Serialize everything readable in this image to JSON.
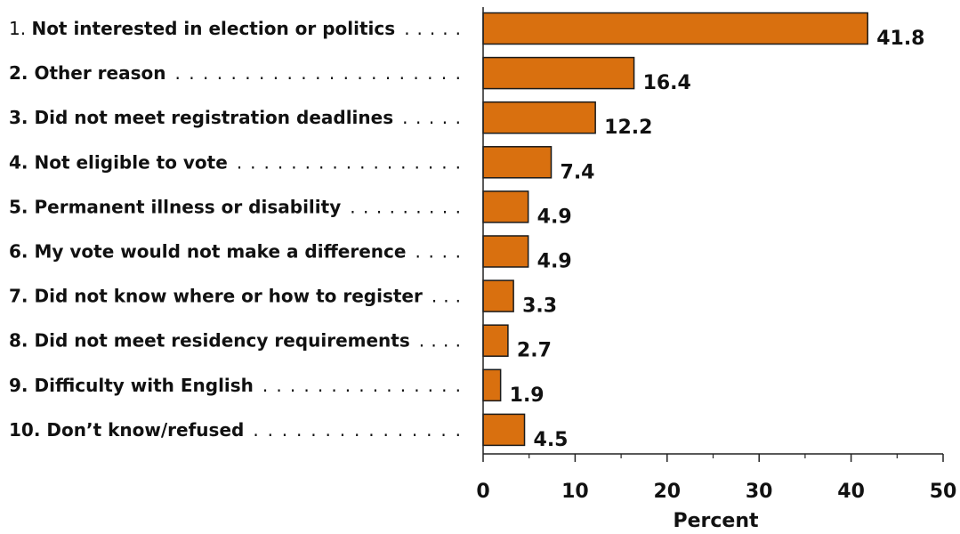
{
  "chart_data": {
    "type": "bar",
    "orientation": "horizontal",
    "categories": [
      "Not interested in election or politics",
      "Other reason",
      "Did not meet registration deadlines",
      "Not eligible to vote",
      "Permanent illness or disability",
      "My vote would not make a difference",
      "Did not know where or how to register",
      "Did not meet residency requirements",
      "Difficulty with English",
      "Don’t know/refused"
    ],
    "category_numbers": [
      "1.",
      "2.",
      "3.",
      "4.",
      "5.",
      "6.",
      "7.",
      "8.",
      "9.",
      "10."
    ],
    "values": [
      41.8,
      16.4,
      12.2,
      7.4,
      4.9,
      4.9,
      3.3,
      2.7,
      1.9,
      4.5
    ],
    "value_labels": [
      "41.8",
      "16.4",
      "12.2",
      "7.4",
      "4.9",
      "4.9",
      "3.3",
      "2.7",
      "1.9",
      "4.5"
    ],
    "title": "",
    "xlabel": "Percent",
    "ylabel": "",
    "xlim": [
      0,
      50
    ],
    "x_ticks": [
      0,
      10,
      20,
      30,
      40,
      50
    ],
    "x_tick_labels": [
      "0",
      "10",
      "20",
      "30",
      "40",
      "50"
    ],
    "x_minor_ticks": [
      5,
      15,
      25,
      35,
      45
    ],
    "grid": false,
    "legend": "none",
    "bar_color": "#d9700f",
    "bar_edge_color": "#1a1a1a",
    "text_color": "#111111"
  }
}
